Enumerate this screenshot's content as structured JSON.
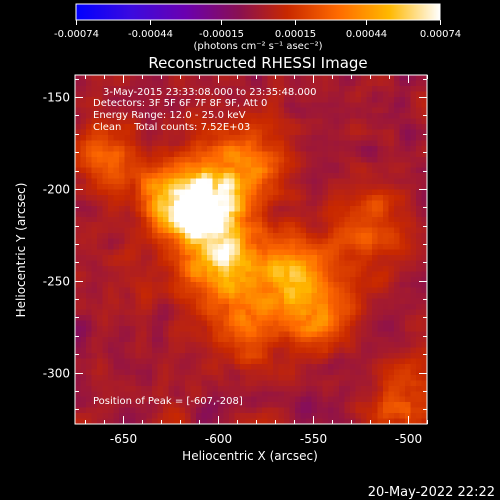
{
  "colorbar": {
    "tick_labels": [
      "-0.00074",
      "-0.00044",
      "-0.00015",
      "0.00015",
      "0.00044",
      "0.00074"
    ],
    "tick_values": [
      -0.00074,
      -0.00044,
      -0.00015,
      0.00015,
      0.00044,
      0.00074
    ],
    "range": [
      -0.00074,
      0.00074
    ],
    "unit_label": "(photons cm⁻² s⁻¹ asec⁻²)",
    "colors": [
      "#0000ff",
      "#5a00c8",
      "#7d0f5a",
      "#b41e00",
      "#f05000",
      "#ff9a00",
      "#ffe050",
      "#ffffff"
    ]
  },
  "annotations": {
    "time_range": "3-May-2015 23:33:08.000 to 23:35:48.000",
    "detectors": "Detectors: 3F 5F 6F 7F 8F 9F, Att 0",
    "energy": "Energy Range: 12.0 - 25.0 keV",
    "clean": "Clean    Total counts: 7.52E+03",
    "peak": "Position of Peak = [-607,-208]"
  },
  "footer": {
    "date": "20-May-2022 22:22"
  },
  "chart_data": {
    "type": "heatmap",
    "title": "Reconstructed RHESSI Image",
    "xlabel": "Heliocentric X (arcsec)",
    "ylabel": "Heliocentric Y (arcsec)",
    "xlim": [
      -675,
      -490
    ],
    "ylim": [
      -328,
      -138
    ],
    "x_ticks": [
      -650,
      -600,
      -550,
      -500
    ],
    "y_ticks": [
      -150,
      -200,
      -250,
      -300
    ],
    "x_tick_labels": [
      "-650",
      "-600",
      "-550",
      "-500"
    ],
    "y_tick_labels": [
      "-150",
      "-200",
      "-250",
      "-300"
    ],
    "grid": false,
    "value_range": [
      -0.00074,
      0.00074
    ],
    "peak_position": [
      -607,
      -208
    ],
    "sources": [
      {
        "x": -605,
        "y": -212,
        "peak": 0.00074
      },
      {
        "x": -598,
        "y": -240,
        "peak": 0.00068
      },
      {
        "x": -620,
        "y": -205,
        "peak": 0.0006
      },
      {
        "x": -560,
        "y": -245,
        "peak": 0.00055
      },
      {
        "x": -585,
        "y": -185,
        "peak": 0.00045
      },
      {
        "x": -548,
        "y": -268,
        "peak": 0.0004
      },
      {
        "x": -660,
        "y": -183,
        "peak": 0.0003
      },
      {
        "x": -520,
        "y": -220,
        "peak": 0.00028
      },
      {
        "x": -500,
        "y": -320,
        "peak": 0.0003
      },
      {
        "x": -585,
        "y": -275,
        "peak": 0.00032
      }
    ]
  }
}
